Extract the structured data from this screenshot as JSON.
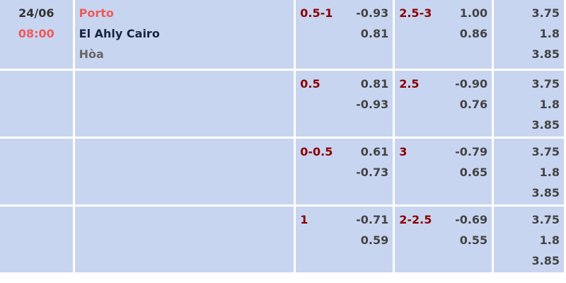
{
  "match": {
    "date": "24/06",
    "time": "08:00",
    "home": "Porto",
    "away": "El Ahly Cairo",
    "draw": "Hòa"
  },
  "colors": {
    "background": "#c8d5f0",
    "home": "#f05a5a",
    "line": "#8b0000",
    "odds": "#444444"
  },
  "rows": [
    {
      "handicap": {
        "line": "0.5-1",
        "home": "-0.93",
        "away": "0.81"
      },
      "total": {
        "line": "2.5-3",
        "over": "1.00",
        "under": "0.86"
      },
      "x12": {
        "home": "3.75",
        "away": "1.8",
        "draw": "3.85"
      }
    },
    {
      "handicap": {
        "line": "0.5",
        "home": "0.81",
        "away": "-0.93"
      },
      "total": {
        "line": "2.5",
        "over": "-0.90",
        "under": "0.76"
      },
      "x12": {
        "home": "3.75",
        "away": "1.8",
        "draw": "3.85"
      }
    },
    {
      "handicap": {
        "line": "0-0.5",
        "home": "0.61",
        "away": "-0.73"
      },
      "total": {
        "line": "3",
        "over": "-0.79",
        "under": "0.65"
      },
      "x12": {
        "home": "3.75",
        "away": "1.8",
        "draw": "3.85"
      }
    },
    {
      "handicap": {
        "line": "1",
        "home": "-0.71",
        "away": "0.59"
      },
      "total": {
        "line": "2-2.5",
        "over": "-0.69",
        "under": "0.55"
      },
      "x12": {
        "home": "3.75",
        "away": "1.8",
        "draw": "3.85"
      }
    }
  ]
}
